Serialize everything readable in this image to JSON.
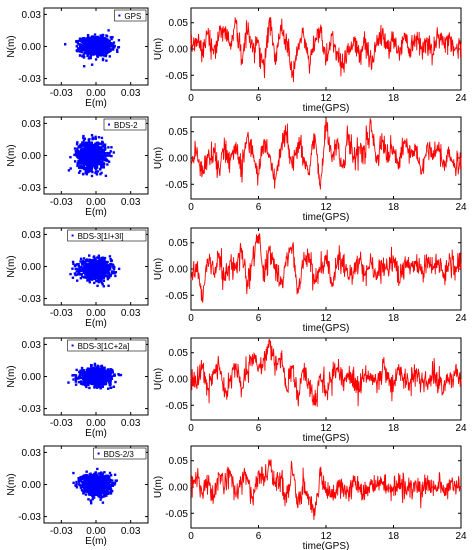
{
  "colors": {
    "scatter": "#0000ff",
    "series": "#ff0000",
    "axis": "#000000",
    "background": "#ffffff"
  },
  "chart_data": [
    {
      "type": "scatter",
      "panel": "gps-scatter",
      "legend": "GPS",
      "legend_position": "top-right",
      "xlabel": "E(m)",
      "ylabel": "N(m)",
      "xlim": [
        -0.045,
        0.045
      ],
      "ylim": [
        -0.036,
        0.036
      ],
      "xticks": [
        -0.03,
        0.0,
        0.03
      ],
      "xtick_labels": [
        "-0.03",
        "0.00",
        "0.03"
      ],
      "yticks": [
        -0.03,
        0.0,
        0.03
      ],
      "ytick_labels": [
        "-0.03",
        "0.00",
        "0.03"
      ],
      "cloud": {
        "center": [
          0.0,
          0.0
        ],
        "spread_e": 0.012,
        "spread_n": 0.008,
        "count": 900
      }
    },
    {
      "type": "line",
      "panel": "gps-up",
      "xlabel": "time(GPS)",
      "ylabel": "U(m)",
      "xlim": [
        0,
        24
      ],
      "ylim": [
        -0.078,
        0.078
      ],
      "xticks": [
        0,
        6,
        12,
        18,
        24
      ],
      "xtick_labels": [
        "0",
        "6",
        "12",
        "18",
        "24"
      ],
      "yticks": [
        -0.05,
        0.0,
        0.05
      ],
      "ytick_labels": [
        "-0.05",
        "0.00",
        "0.05"
      ],
      "series": [
        {
          "x": [
            0,
            0.5,
            1,
            1.5,
            2,
            2.5,
            3,
            3.5,
            4,
            4.5,
            5,
            5.5,
            6,
            6.5,
            7,
            7.5,
            8,
            8.5,
            9,
            9.5,
            10,
            10.5,
            11,
            11.5,
            12,
            12.5,
            13,
            13.5,
            14,
            14.5,
            15,
            15.5,
            16,
            16.5,
            17,
            17.5,
            18,
            18.5,
            19,
            19.5,
            20,
            20.5,
            21,
            21.5,
            22,
            22.5,
            23,
            23.5,
            24
          ],
          "values": [
            0.005,
            0.02,
            0.0,
            0.03,
            -0.01,
            0.025,
            0.04,
            0.01,
            0.05,
            -0.02,
            0.035,
            0.0,
            0.015,
            -0.04,
            0.06,
            -0.03,
            0.045,
            0.02,
            -0.05,
            0.0,
            0.03,
            -0.03,
            0.01,
            0.04,
            -0.02,
            0.025,
            -0.01,
            -0.03,
            0.0,
            0.015,
            -0.02,
            0.02,
            -0.025,
            0.01,
            0.03,
            0.0,
            0.02,
            -0.01,
            0.03,
            0.0,
            0.025,
            0.005,
            0.02,
            -0.01,
            0.025,
            0.01,
            0.02,
            0.0,
            0.01
          ]
        }
      ]
    },
    {
      "type": "scatter",
      "panel": "bds2-scatter",
      "legend": "BDS-2",
      "legend_position": "top-right",
      "xlabel": "E(m)",
      "ylabel": "N(m)",
      "xlim": [
        -0.045,
        0.045
      ],
      "ylim": [
        -0.036,
        0.036
      ],
      "xticks": [
        -0.03,
        0.0,
        0.03
      ],
      "xtick_labels": [
        "-0.03",
        "0.00",
        "0.03"
      ],
      "yticks": [
        -0.03,
        0.0,
        0.03
      ],
      "ytick_labels": [
        "-0.03",
        "0.00",
        "0.03"
      ],
      "cloud": {
        "center": [
          -0.004,
          0.0
        ],
        "spread_e": 0.011,
        "spread_n": 0.012,
        "count": 900
      }
    },
    {
      "type": "line",
      "panel": "bds2-up",
      "xlabel": "time(GPS)",
      "ylabel": "U(m)",
      "xlim": [
        0,
        24
      ],
      "ylim": [
        -0.078,
        0.078
      ],
      "xticks": [
        0,
        6,
        12,
        18,
        24
      ],
      "xtick_labels": [
        "0",
        "6",
        "12",
        "18",
        "24"
      ],
      "yticks": [
        -0.05,
        0.0,
        0.05
      ],
      "ytick_labels": [
        "-0.05",
        "0.00",
        "0.05"
      ],
      "series": [
        {
          "x": [
            0,
            0.5,
            1,
            1.5,
            2,
            2.5,
            3,
            3.5,
            4,
            4.5,
            5,
            5.5,
            6,
            6.5,
            7,
            7.5,
            8,
            8.5,
            9,
            9.5,
            10,
            10.5,
            11,
            11.5,
            12,
            12.5,
            13,
            13.5,
            14,
            14.5,
            15,
            15.5,
            16,
            16.5,
            17,
            17.5,
            18,
            18.5,
            19,
            19.5,
            20,
            20.5,
            21,
            21.5,
            22,
            22.5,
            23,
            23.5,
            24
          ],
          "values": [
            -0.01,
            0.01,
            -0.03,
            0.0,
            0.02,
            -0.02,
            0.015,
            -0.005,
            0.03,
            -0.02,
            0.04,
            0.01,
            -0.03,
            0.035,
            0.0,
            -0.04,
            0.02,
            0.05,
            -0.02,
            0.03,
            0.0,
            -0.03,
            0.045,
            -0.06,
            0.075,
            0.0,
            0.03,
            -0.02,
            0.04,
            0.0,
            0.02,
            0.01,
            0.07,
            -0.01,
            0.03,
            0.0,
            0.02,
            -0.02,
            0.035,
            0.0,
            0.015,
            -0.03,
            0.025,
            0.0,
            0.02,
            -0.01,
            0.005,
            -0.02,
            0.0
          ]
        }
      ]
    },
    {
      "type": "scatter",
      "panel": "bds3-1i3i-scatter",
      "legend": "BDS-3[1I+3I]",
      "legend_position": "top-right",
      "xlabel": "E(m)",
      "ylabel": "N(m)",
      "xlim": [
        -0.045,
        0.045
      ],
      "ylim": [
        -0.036,
        0.036
      ],
      "xticks": [
        -0.03,
        0.0,
        0.03
      ],
      "xtick_labels": [
        "-0.03",
        "0.00",
        "0.03"
      ],
      "yticks": [
        -0.03,
        0.0,
        0.03
      ],
      "ytick_labels": [
        "-0.03",
        "0.00",
        "0.03"
      ],
      "cloud": {
        "center": [
          0.0,
          -0.003
        ],
        "spread_e": 0.012,
        "spread_n": 0.008,
        "count": 900
      }
    },
    {
      "type": "line",
      "panel": "bds3-1i3i-up",
      "xlabel": "time(GPS)",
      "ylabel": "U(m)",
      "xlim": [
        0,
        24
      ],
      "ylim": [
        -0.078,
        0.078
      ],
      "xticks": [
        0,
        6,
        12,
        18,
        24
      ],
      "xtick_labels": [
        "0",
        "6",
        "12",
        "18",
        "24"
      ],
      "yticks": [
        -0.05,
        0.0,
        0.05
      ],
      "ytick_labels": [
        "-0.05",
        "0.00",
        "0.05"
      ],
      "series": [
        {
          "x": [
            0,
            0.5,
            1,
            1.5,
            2,
            2.5,
            3,
            3.5,
            4,
            4.5,
            5,
            5.5,
            6,
            6.5,
            7,
            7.5,
            8,
            8.5,
            9,
            9.5,
            10,
            10.5,
            11,
            11.5,
            12,
            12.5,
            13,
            13.5,
            14,
            14.5,
            15,
            15.5,
            16,
            16.5,
            17,
            17.5,
            18,
            18.5,
            19,
            19.5,
            20,
            20.5,
            21,
            21.5,
            22,
            22.5,
            23,
            23.5,
            24
          ],
          "values": [
            -0.02,
            0.01,
            -0.06,
            0.02,
            -0.01,
            0.03,
            -0.02,
            0.015,
            0.0,
            0.04,
            -0.03,
            0.02,
            0.065,
            -0.01,
            0.035,
            0.0,
            -0.03,
            0.02,
            0.04,
            -0.045,
            0.01,
            0.03,
            -0.02,
            0.0,
            0.025,
            -0.03,
            0.01,
            0.02,
            -0.015,
            0.0,
            0.02,
            -0.01,
            0.015,
            -0.02,
            0.01,
            0.0,
            0.02,
            -0.025,
            0.015,
            0.0,
            0.01,
            -0.01,
            0.02,
            0.0,
            0.015,
            -0.01,
            0.02,
            0.005,
            0.01
          ]
        }
      ]
    },
    {
      "type": "scatter",
      "panel": "bds3-1c2a-scatter",
      "legend": "BDS-3[1C+2a]",
      "legend_position": "top-right",
      "xlabel": "E(m)",
      "ylabel": "N(m)",
      "xlim": [
        -0.045,
        0.045
      ],
      "ylim": [
        -0.036,
        0.036
      ],
      "xticks": [
        -0.03,
        0.0,
        0.03
      ],
      "xtick_labels": [
        "-0.03",
        "0.00",
        "0.03"
      ],
      "yticks": [
        -0.03,
        0.0,
        0.03
      ],
      "ytick_labels": [
        "-0.03",
        "0.00",
        "0.03"
      ],
      "cloud": {
        "center": [
          0.0,
          0.0
        ],
        "spread_e": 0.012,
        "spread_n": 0.007,
        "count": 900
      }
    },
    {
      "type": "line",
      "panel": "bds3-1c2a-up",
      "xlabel": "time(GPS)",
      "ylabel": "U(m)",
      "xlim": [
        0,
        24
      ],
      "ylim": [
        -0.078,
        0.078
      ],
      "xticks": [
        0,
        6,
        12,
        18,
        24
      ],
      "xtick_labels": [
        "0",
        "6",
        "12",
        "18",
        "24"
      ],
      "yticks": [
        -0.05,
        0.0,
        0.05
      ],
      "ytick_labels": [
        "-0.05",
        "0.00",
        "0.05"
      ],
      "series": [
        {
          "x": [
            0,
            0.5,
            1,
            1.5,
            2,
            2.5,
            3,
            3.5,
            4,
            4.5,
            5,
            5.5,
            6,
            6.5,
            7,
            7.5,
            8,
            8.5,
            9,
            9.5,
            10,
            10.5,
            11,
            11.5,
            12,
            12.5,
            13,
            13.5,
            14,
            14.5,
            15,
            15.5,
            16,
            16.5,
            17,
            17.5,
            18,
            18.5,
            19,
            19.5,
            20,
            20.5,
            21,
            21.5,
            22,
            22.5,
            23,
            23.5,
            24
          ],
          "values": [
            0.0,
            -0.01,
            0.02,
            -0.02,
            0.01,
            0.025,
            -0.03,
            0.0,
            0.03,
            -0.02,
            0.01,
            0.04,
            0.02,
            0.035,
            0.07,
            0.03,
            0.05,
            -0.02,
            0.025,
            -0.04,
            0.02,
            -0.01,
            -0.05,
            0.01,
            -0.02,
            0.0,
            0.02,
            -0.015,
            0.01,
            0.0,
            -0.02,
            0.01,
            0.0,
            -0.01,
            0.015,
            0.0,
            -0.01,
            0.02,
            0.0,
            -0.005,
            0.01,
            0.0,
            -0.01,
            0.015,
            0.0,
            -0.01,
            0.005,
            0.01,
            0.0
          ]
        }
      ]
    },
    {
      "type": "scatter",
      "panel": "bds23-scatter",
      "legend": "BDS-2/3",
      "legend_position": "top-right",
      "xlabel": "E(m)",
      "ylabel": "N(m)",
      "xlim": [
        -0.045,
        0.045
      ],
      "ylim": [
        -0.036,
        0.036
      ],
      "xticks": [
        -0.03,
        0.0,
        0.03
      ],
      "xtick_labels": [
        "-0.03",
        "0.00",
        "0.03"
      ],
      "yticks": [
        -0.03,
        0.0,
        0.03
      ],
      "ytick_labels": [
        "-0.03",
        "0.00",
        "0.03"
      ],
      "cloud": {
        "center": [
          0.0,
          0.0
        ],
        "spread_e": 0.011,
        "spread_n": 0.009,
        "count": 900
      }
    },
    {
      "type": "line",
      "panel": "bds23-up",
      "xlabel": "time(GPS)",
      "ylabel": "U(m)",
      "xlim": [
        0,
        24
      ],
      "ylim": [
        -0.078,
        0.078
      ],
      "xticks": [
        0,
        6,
        12,
        18,
        24
      ],
      "xtick_labels": [
        "0",
        "6",
        "12",
        "18",
        "24"
      ],
      "yticks": [
        -0.05,
        0.0,
        0.05
      ],
      "ytick_labels": [
        "-0.05",
        "0.00",
        "0.05"
      ],
      "series": [
        {
          "x": [
            0,
            0.5,
            1,
            1.5,
            2,
            2.5,
            3,
            3.5,
            4,
            4.5,
            5,
            5.5,
            6,
            6.5,
            7,
            7.5,
            8,
            8.5,
            9,
            9.5,
            10,
            10.5,
            11,
            11.5,
            12,
            12.5,
            13,
            13.5,
            14,
            14.5,
            15,
            15.5,
            16,
            16.5,
            17,
            17.5,
            18,
            18.5,
            19,
            19.5,
            20,
            20.5,
            21,
            21.5,
            22,
            22.5,
            23,
            23.5,
            24
          ],
          "values": [
            0.0,
            0.02,
            -0.01,
            0.01,
            -0.02,
            0.025,
            0.0,
            0.03,
            -0.02,
            0.01,
            0.02,
            -0.03,
            0.03,
            0.01,
            0.05,
            0.0,
            0.02,
            -0.03,
            0.03,
            -0.04,
            0.01,
            -0.02,
            -0.055,
            0.02,
            0.0,
            -0.02,
            0.01,
            0.0,
            -0.015,
            0.01,
            0.0,
            -0.01,
            0.015,
            0.0,
            0.01,
            -0.005,
            0.0,
            0.01,
            -0.005,
            0.0,
            0.01,
            -0.01,
            0.005,
            0.0,
            0.01,
            -0.01,
            0.0,
            0.005,
            0.0
          ]
        }
      ]
    }
  ]
}
